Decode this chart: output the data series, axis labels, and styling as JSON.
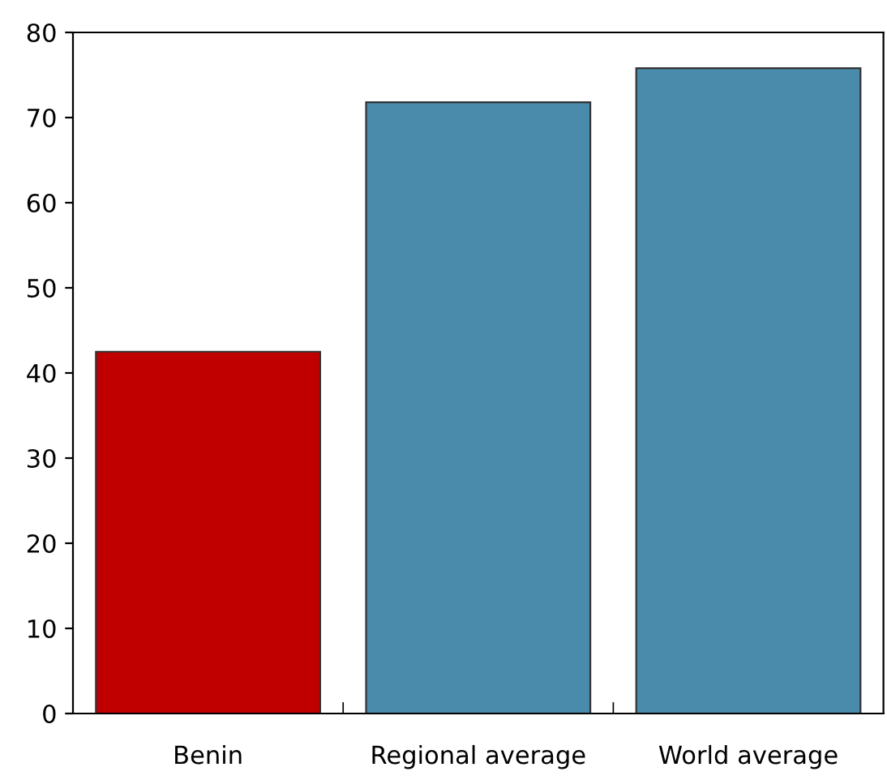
{
  "chart_data": {
    "type": "bar",
    "categories": [
      "Benin",
      "Regional average",
      "World average"
    ],
    "values": [
      42.5,
      71.8,
      75.8
    ],
    "colors": [
      "#c00000",
      "#4a8aab",
      "#4a8aab"
    ],
    "ylim": [
      0,
      80
    ],
    "yticks": [
      0,
      10,
      20,
      30,
      40,
      50,
      60,
      70,
      80
    ],
    "grid": false,
    "legend": false
  }
}
